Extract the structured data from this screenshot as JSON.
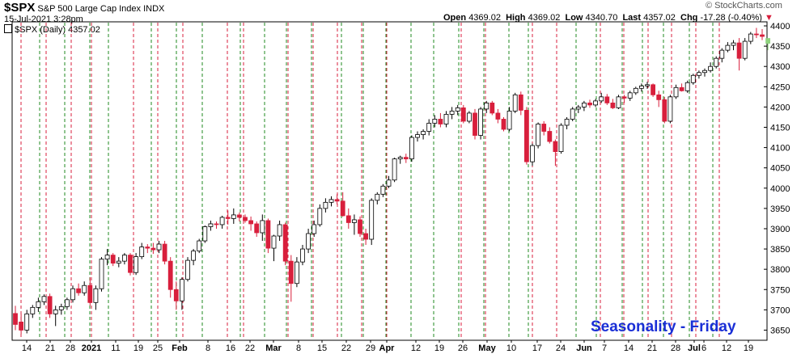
{
  "header": {
    "symbol": "$SPX",
    "name": "S&P 500 Large Cap Index",
    "exchange": "INDX",
    "datetime": "15-Jul-2021 3:28pm",
    "open_label": "Open",
    "open": "4369.02",
    "high_label": "High",
    "high": "4369.02",
    "low_label": "Low",
    "low": "4340.70",
    "last_label": "Last",
    "last": "4357.02",
    "chg_label": "Chg",
    "chg": "-17.28 (-0.40%)",
    "copyright": "© StockCharts.com",
    "legend": "$SPX (Daily) 4357.02"
  },
  "chart_data": {
    "type": "candlestick",
    "title": "$SPX S&P 500 Large Cap Index INDX",
    "ylim": [
      3625,
      4410
    ],
    "y_ticks": [
      3650,
      3700,
      3750,
      3800,
      3850,
      3900,
      3950,
      4000,
      4050,
      4100,
      4150,
      4200,
      4250,
      4300,
      4350,
      4400
    ],
    "x_tick_labels": [
      "14",
      "21",
      "28",
      "2021",
      "11",
      "19",
      "25",
      "Feb",
      "8",
      "16",
      "22",
      "Mar",
      "8",
      "15",
      "22",
      "29",
      "Apr",
      "12",
      "19",
      "26",
      "May",
      "10",
      "17",
      "24",
      "Jun",
      "7",
      "14",
      "21",
      "28",
      "Jul",
      "6",
      "12",
      "19"
    ],
    "annotation": "Seasonality - Friday",
    "colors": {
      "up": "#ffffff",
      "down": "#d81f3c",
      "last": "#8fd37e",
      "friday_line": "#d81f3c",
      "monday_line": "#1f8a1f"
    },
    "grid": false,
    "legend": "top-left",
    "candles": [
      [
        3691,
        3710,
        3650,
        3664
      ],
      [
        3670,
        3690,
        3640,
        3650
      ],
      [
        3650,
        3700,
        3642,
        3690
      ],
      [
        3690,
        3712,
        3680,
        3706
      ],
      [
        3706,
        3730,
        3695,
        3720
      ],
      [
        3720,
        3738,
        3712,
        3733
      ],
      [
        3733,
        3740,
        3680,
        3690
      ],
      [
        3690,
        3710,
        3660,
        3700
      ],
      [
        3700,
        3715,
        3688,
        3708
      ],
      [
        3708,
        3730,
        3700,
        3725
      ],
      [
        3725,
        3760,
        3718,
        3752
      ],
      [
        3752,
        3765,
        3735,
        3742
      ],
      [
        3742,
        3770,
        3735,
        3760
      ],
      [
        3760,
        3780,
        3710,
        3718
      ],
      [
        3718,
        3760,
        3700,
        3752
      ],
      [
        3752,
        3830,
        3745,
        3825
      ],
      [
        3825,
        3850,
        3810,
        3835
      ],
      [
        3835,
        3840,
        3808,
        3815
      ],
      [
        3815,
        3830,
        3805,
        3820
      ],
      [
        3820,
        3840,
        3812,
        3835
      ],
      [
        3835,
        3840,
        3785,
        3792
      ],
      [
        3792,
        3840,
        3786,
        3831
      ],
      [
        3831,
        3865,
        3825,
        3855
      ],
      [
        3855,
        3862,
        3840,
        3852
      ],
      [
        3852,
        3865,
        3838,
        3848
      ],
      [
        3848,
        3870,
        3840,
        3862
      ],
      [
        3862,
        3870,
        3812,
        3820
      ],
      [
        3820,
        3830,
        3730,
        3750
      ],
      [
        3750,
        3770,
        3700,
        3722
      ],
      [
        3722,
        3780,
        3700,
        3775
      ],
      [
        3775,
        3830,
        3770,
        3822
      ],
      [
        3822,
        3850,
        3810,
        3845
      ],
      [
        3845,
        3875,
        3840,
        3870
      ],
      [
        3870,
        3908,
        3865,
        3905
      ],
      [
        3905,
        3920,
        3895,
        3912
      ],
      [
        3912,
        3918,
        3900,
        3910
      ],
      [
        3910,
        3932,
        3900,
        3928
      ],
      [
        3928,
        3945,
        3910,
        3925
      ],
      [
        3925,
        3950,
        3912,
        3934
      ],
      [
        3934,
        3940,
        3918,
        3928
      ],
      [
        3928,
        3935,
        3915,
        3920
      ],
      [
        3920,
        3930,
        3895,
        3912
      ],
      [
        3912,
        3918,
        3880,
        3890
      ],
      [
        3890,
        3935,
        3870,
        3920
      ],
      [
        3920,
        3925,
        3840,
        3852
      ],
      [
        3852,
        3885,
        3820,
        3882
      ],
      [
        3882,
        3920,
        3870,
        3910
      ],
      [
        3910,
        3915,
        3810,
        3820
      ],
      [
        3820,
        3835,
        3720,
        3765
      ],
      [
        3765,
        3830,
        3756,
        3818
      ],
      [
        3818,
        3860,
        3810,
        3850
      ],
      [
        3850,
        3900,
        3840,
        3888
      ],
      [
        3888,
        3920,
        3880,
        3910
      ],
      [
        3910,
        3960,
        3905,
        3950
      ],
      [
        3950,
        3975,
        3940,
        3965
      ],
      [
        3965,
        3980,
        3955,
        3972
      ],
      [
        3972,
        3985,
        3960,
        3968
      ],
      [
        3968,
        3990,
        3930,
        3932
      ],
      [
        3932,
        3950,
        3900,
        3915
      ],
      [
        3915,
        3935,
        3885,
        3922
      ],
      [
        3922,
        3930,
        3880,
        3888
      ],
      [
        3888,
        3900,
        3860,
        3874
      ],
      [
        3874,
        3975,
        3860,
        3970
      ],
      [
        3970,
        3990,
        3960,
        3985
      ],
      [
        3985,
        4010,
        3978,
        4005
      ],
      [
        4005,
        4030,
        4000,
        4020
      ],
      [
        4020,
        4075,
        4015,
        4072
      ],
      [
        4072,
        4080,
        4060,
        4076
      ],
      [
        4076,
        4085,
        4062,
        4072
      ],
      [
        4072,
        4130,
        4065,
        4125
      ],
      [
        4125,
        4140,
        4115,
        4132
      ],
      [
        4132,
        4145,
        4120,
        4140
      ],
      [
        4140,
        4170,
        4130,
        4160
      ],
      [
        4160,
        4180,
        4150,
        4170
      ],
      [
        4170,
        4185,
        4150,
        4158
      ],
      [
        4158,
        4190,
        4150,
        4182
      ],
      [
        4182,
        4200,
        4170,
        4190
      ],
      [
        4190,
        4205,
        4180,
        4198
      ],
      [
        4198,
        4205,
        4160,
        4165
      ],
      [
        4165,
        4190,
        4160,
        4185
      ],
      [
        4185,
        4195,
        4120,
        4130
      ],
      [
        4130,
        4200,
        4120,
        4195
      ],
      [
        4195,
        4215,
        4185,
        4210
      ],
      [
        4210,
        4215,
        4180,
        4185
      ],
      [
        4185,
        4195,
        4160,
        4170
      ],
      [
        4170,
        4175,
        4140,
        4145
      ],
      [
        4145,
        4200,
        4140,
        4190
      ],
      [
        4190,
        4235,
        4185,
        4230
      ],
      [
        4230,
        4238,
        4180,
        4192
      ],
      [
        4192,
        4200,
        4058,
        4065
      ],
      [
        4065,
        4110,
        4055,
        4105
      ],
      [
        4105,
        4162,
        4098,
        4158
      ],
      [
        4158,
        4165,
        4130,
        4140
      ],
      [
        4140,
        4150,
        4110,
        4115
      ],
      [
        4115,
        4120,
        4055,
        4090
      ],
      [
        4090,
        4160,
        4085,
        4155
      ],
      [
        4155,
        4175,
        4145,
        4170
      ],
      [
        4170,
        4200,
        4165,
        4195
      ],
      [
        4195,
        4205,
        4185,
        4200
      ],
      [
        4200,
        4215,
        4190,
        4210
      ],
      [
        4210,
        4218,
        4198,
        4205
      ],
      [
        4205,
        4220,
        4200,
        4215
      ],
      [
        4215,
        4235,
        4210,
        4225
      ],
      [
        4225,
        4232,
        4205,
        4210
      ],
      [
        4210,
        4220,
        4195,
        4198
      ],
      [
        4198,
        4230,
        4195,
        4225
      ],
      [
        4225,
        4230,
        4210,
        4222
      ],
      [
        4222,
        4240,
        4215,
        4235
      ],
      [
        4235,
        4250,
        4230,
        4246
      ],
      [
        4246,
        4258,
        4238,
        4252
      ],
      [
        4252,
        4262,
        4245,
        4255
      ],
      [
        4255,
        4258,
        4225,
        4230
      ],
      [
        4230,
        4240,
        4200,
        4218
      ],
      [
        4218,
        4225,
        4160,
        4165
      ],
      [
        4165,
        4230,
        4160,
        4225
      ],
      [
        4225,
        4255,
        4220,
        4248
      ],
      [
        4248,
        4258,
        4238,
        4240
      ],
      [
        4240,
        4265,
        4235,
        4260
      ],
      [
        4260,
        4282,
        4255,
        4278
      ],
      [
        4278,
        4290,
        4270,
        4285
      ],
      [
        4285,
        4295,
        4275,
        4290
      ],
      [
        4290,
        4310,
        4285,
        4300
      ],
      [
        4300,
        4325,
        4295,
        4320
      ],
      [
        4320,
        4345,
        4310,
        4340
      ],
      [
        4340,
        4360,
        4335,
        4352
      ],
      [
        4352,
        4365,
        4340,
        4358
      ],
      [
        4358,
        4370,
        4290,
        4320
      ],
      [
        4320,
        4370,
        4315,
        4362
      ],
      [
        4362,
        4385,
        4355,
        4380
      ],
      [
        4380,
        4395,
        4370,
        4378
      ],
      [
        4378,
        4392,
        4365,
        4374
      ],
      [
        4369,
        4369,
        4340,
        4357
      ]
    ]
  }
}
